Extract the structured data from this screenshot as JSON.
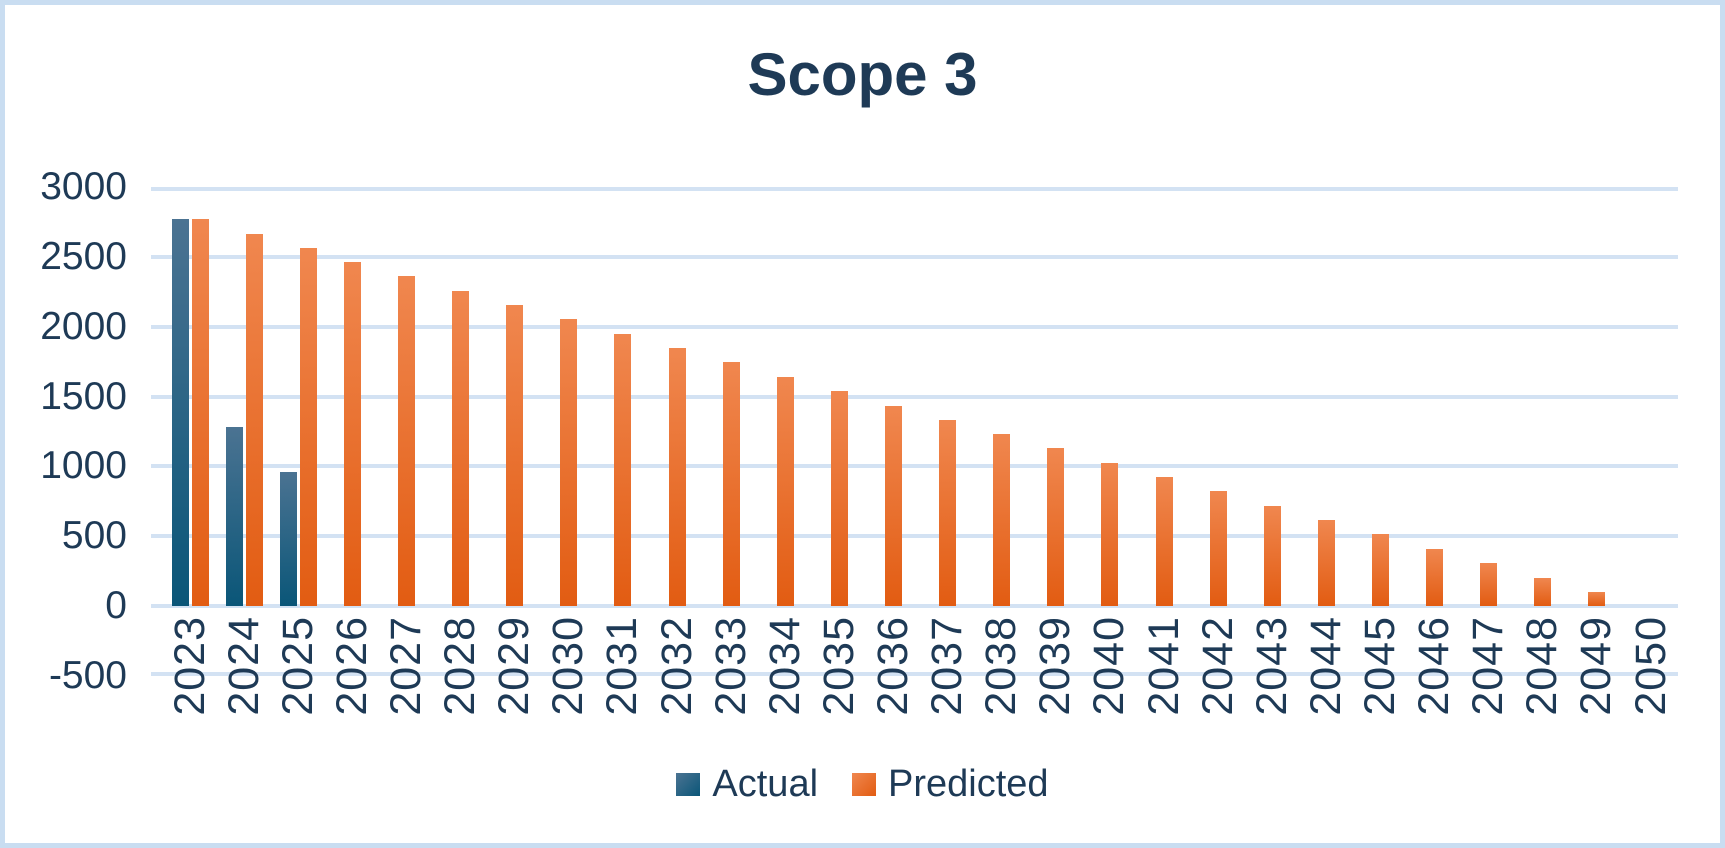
{
  "title": "Scope 3",
  "legend": {
    "actual_label": "Actual",
    "predicted_label": "Predicted"
  },
  "colors": {
    "text_navy": "#1E3A56",
    "frame_border": "#C9DDF1",
    "gridline": "#D3E2F3",
    "actual_top": "#4B7392",
    "actual_bottom": "#0A5678",
    "predicted_top": "#F0874F",
    "predicted_bottom": "#E25C12"
  },
  "chart_data": {
    "type": "bar",
    "title": "Scope 3",
    "categories": [
      "2023",
      "2024",
      "2025",
      "2026",
      "2027",
      "2028",
      "2029",
      "2030",
      "2031",
      "2032",
      "2033",
      "2034",
      "2035",
      "2036",
      "2037",
      "2038",
      "2039",
      "2040",
      "2041",
      "2042",
      "2043",
      "2044",
      "2045",
      "2046",
      "2047",
      "2048",
      "2049",
      "2050"
    ],
    "series": [
      {
        "name": "Actual",
        "color_top": "#4B7392",
        "color_bottom": "#0A5678",
        "values": [
          2770,
          1285,
          960,
          null,
          null,
          null,
          null,
          null,
          null,
          null,
          null,
          null,
          null,
          null,
          null,
          null,
          null,
          null,
          null,
          null,
          null,
          null,
          null,
          null,
          null,
          null,
          null,
          null
        ]
      },
      {
        "name": "Predicted",
        "color_top": "#F0874F",
        "color_bottom": "#E25C12",
        "values": [
          2770,
          2667,
          2565,
          2462,
          2360,
          2257,
          2154,
          2052,
          1949,
          1847,
          1744,
          1642,
          1539,
          1436,
          1334,
          1231,
          1129,
          1026,
          923,
          821,
          718,
          616,
          513,
          410,
          308,
          205,
          103,
          0
        ]
      }
    ],
    "xlabel": "",
    "ylabel": "",
    "ylim": [
      -500,
      3000
    ],
    "yticks": [
      3000,
      2500,
      2000,
      1500,
      1000,
      500,
      0,
      -500
    ],
    "grid": true,
    "legend_position": "bottom",
    "x_tick_rotation": 90
  }
}
